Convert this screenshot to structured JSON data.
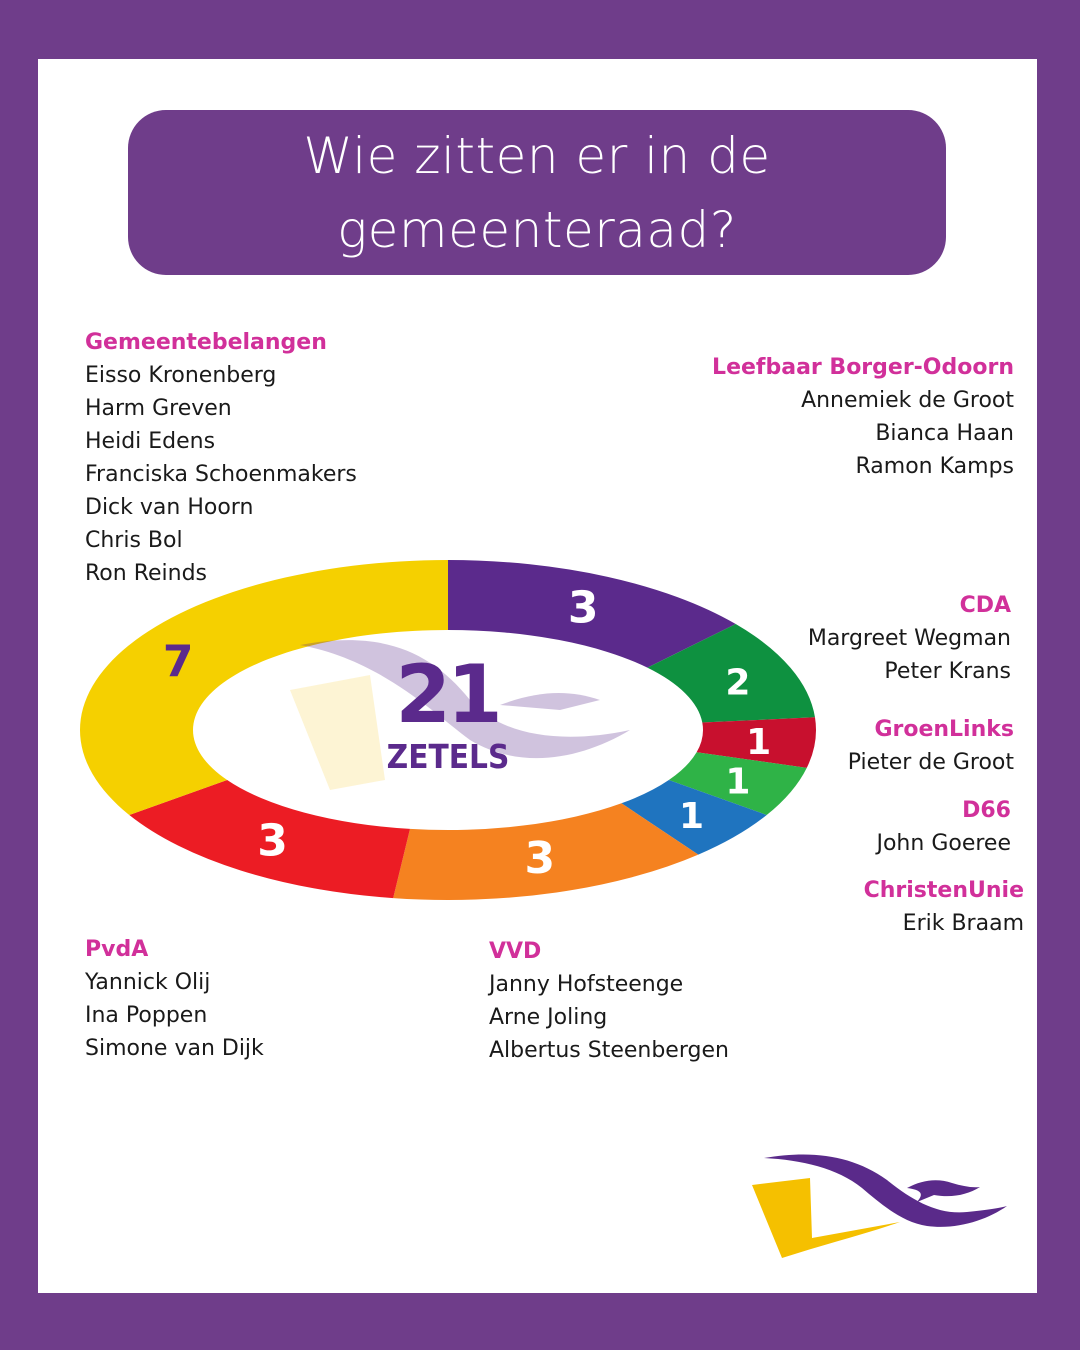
{
  "title": "Wie zitten er in de\ngemeenteraad?",
  "colors": {
    "background": "#6f3d8a",
    "card": "#ffffff",
    "party_name": "#d1309a",
    "member_text": "#1a1a1a",
    "logo_purple": "#5a2a8a",
    "logo_yellow": "#f5c000"
  },
  "parties": [
    {
      "name": "Gemeentebelangen",
      "members": [
        "Eisso Kronenberg",
        "Harm Greven",
        "Heidi Edens",
        "Franciska Schoenmakers",
        "Dick van Hoorn",
        "Chris Bol",
        "Ron Reinds"
      ]
    },
    {
      "name": "Leefbaar Borger-Odoorn",
      "members": [
        "Annemiek de Groot",
        "Bianca Haan",
        "Ramon Kamps"
      ]
    },
    {
      "name": "CDA",
      "members": [
        "Margreet Wegman",
        "Peter Krans"
      ]
    },
    {
      "name": "GroenLinks",
      "members": [
        "Pieter de Groot"
      ]
    },
    {
      "name": "D66",
      "members": [
        "John Goeree"
      ]
    },
    {
      "name": "ChristenUnie",
      "members": [
        "Erik Braam"
      ]
    },
    {
      "name": "PvdA",
      "members": [
        "Yannick Olij",
        "Ina Poppen",
        "Simone van Dijk"
      ]
    },
    {
      "name": "VVD",
      "members": [
        "Janny Hofsteenge",
        "Arne Joling",
        "Albertus Steenbergen"
      ]
    }
  ],
  "chart_data": {
    "type": "pie",
    "variant": "donut",
    "title": "21 ZETELS",
    "center_number": "21",
    "center_label": "ZETELS",
    "total": 21,
    "categories": [
      "Leefbaar Borger-Odoorn",
      "CDA",
      "D66",
      "GroenLinks",
      "ChristenUnie",
      "VVD",
      "PvdA",
      "Gemeentebelangen"
    ],
    "values": [
      3,
      2,
      1,
      1,
      1,
      3,
      3,
      7
    ],
    "colors": [
      "#5b2a8c",
      "#0e9140",
      "#c8102e",
      "#2fb347",
      "#1f74bf",
      "#f58220",
      "#ec1c24",
      "#f5d000"
    ],
    "label_colors": [
      "#ffffff",
      "#ffffff",
      "#ffffff",
      "#ffffff",
      "#ffffff",
      "#ffffff",
      "#ffffff",
      "#5b2a8c"
    ],
    "start_angle_deg": 0,
    "direction": "clockwise",
    "legend": "none"
  }
}
